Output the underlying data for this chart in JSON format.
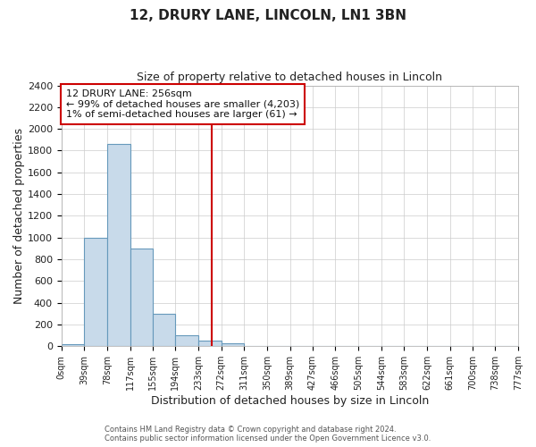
{
  "title_line1": "12, DRURY LANE, LINCOLN, LN1 3BN",
  "title_line2": "Size of property relative to detached houses in Lincoln",
  "xlabel": "Distribution of detached houses by size in Lincoln",
  "ylabel": "Number of detached properties",
  "bin_edges": [
    0,
    39,
    78,
    117,
    155,
    194,
    233,
    272,
    311,
    350,
    389,
    427,
    466,
    505,
    544,
    583,
    622,
    661,
    700,
    738,
    777
  ],
  "bin_counts": [
    20,
    1000,
    1860,
    900,
    300,
    100,
    50,
    30,
    0,
    0,
    0,
    0,
    0,
    0,
    0,
    0,
    0,
    0,
    0,
    0
  ],
  "property_value": 256,
  "ylim": [
    0,
    2400
  ],
  "yticks": [
    0,
    200,
    400,
    600,
    800,
    1000,
    1200,
    1400,
    1600,
    1800,
    2000,
    2200,
    2400
  ],
  "bar_color": "#c8daea",
  "bar_edge_color": "#6699bb",
  "vline_color": "#cc0000",
  "annotation_title": "12 DRURY LANE: 256sqm",
  "annotation_line2": "← 99% of detached houses are smaller (4,203)",
  "annotation_line3": "1% of semi-detached houses are larger (61) →",
  "annotation_box_edge": "#cc0000",
  "footer_line1": "Contains HM Land Registry data © Crown copyright and database right 2024.",
  "footer_line2": "Contains public sector information licensed under the Open Government Licence v3.0.",
  "background_color": "#ffffff",
  "plot_bg_color": "#ffffff",
  "grid_color": "#cccccc"
}
